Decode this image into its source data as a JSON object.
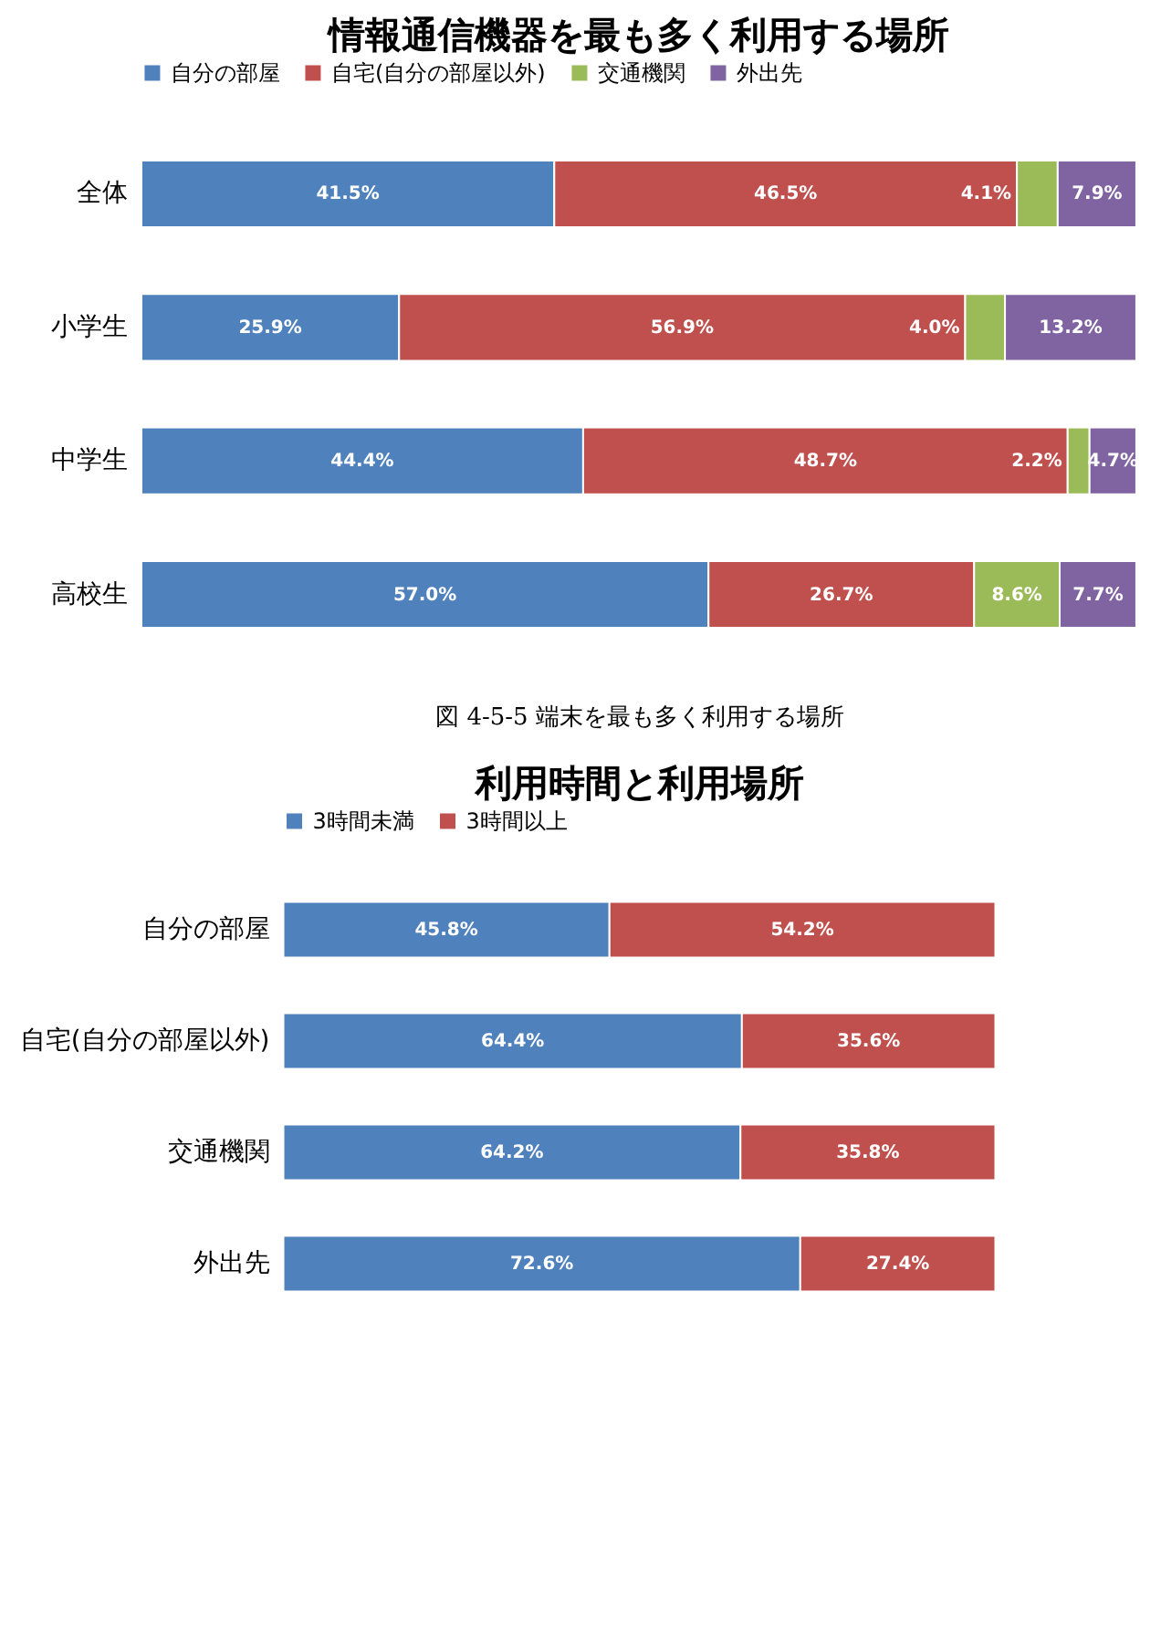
{
  "chart_data": [
    {
      "type": "bar",
      "orientation": "horizontal",
      "stacked": true,
      "title": "情報通信機器を最も多く利用する場所",
      "categories": [
        "全体",
        "小学生",
        "中学生",
        "高校生"
      ],
      "xlim": [
        0,
        100
      ],
      "tick_labels": "y",
      "legend": "top",
      "annotations": [
        "図 4-5-5 端末を最も多く利用する場所"
      ],
      "series": [
        {
          "name": "自分の部屋",
          "color": "#4f81bd",
          "values": [
            41.5,
            25.9,
            44.4,
            57.0
          ],
          "value_labels": [
            "41.5%",
            "25.9%",
            "44.4%",
            "57.0%"
          ]
        },
        {
          "name": "自宅(自分の部屋以外)",
          "color": "#c0504d",
          "values": [
            46.5,
            56.9,
            48.7,
            26.7
          ],
          "value_labels": [
            "46.5%",
            "56.9%",
            "48.7%",
            "26.7%"
          ]
        },
        {
          "name": "交通機関",
          "color": "#9bbb59",
          "values": [
            4.1,
            4.0,
            2.2,
            8.6
          ],
          "value_labels": [
            "4.1%",
            "4.0%",
            "2.2%",
            "8.6%"
          ]
        },
        {
          "name": "外出先",
          "color": "#8064a2",
          "values": [
            7.9,
            13.2,
            4.7,
            7.7
          ],
          "value_labels": [
            "7.9%",
            "13.2%",
            "4.7%",
            "7.7%"
          ]
        }
      ]
    },
    {
      "type": "bar",
      "orientation": "horizontal",
      "stacked": true,
      "title": "利用時間と利用場所",
      "categories": [
        "自分の部屋",
        "自宅(自分の部屋以外)",
        "交通機関",
        "外出先"
      ],
      "xlim": [
        0,
        100
      ],
      "tick_labels": "y",
      "legend": "top",
      "series": [
        {
          "name": "3時間未満",
          "color": "#4f81bd",
          "values": [
            45.8,
            64.4,
            64.2,
            72.6
          ],
          "value_labels": [
            "45.8%",
            "64.4%",
            "64.2%",
            "72.6%"
          ]
        },
        {
          "name": "3時間以上",
          "color": "#c0504d",
          "values": [
            54.2,
            35.6,
            35.8,
            27.4
          ],
          "value_labels": [
            "54.2%",
            "35.6%",
            "35.8%",
            "27.4%"
          ]
        }
      ]
    }
  ]
}
